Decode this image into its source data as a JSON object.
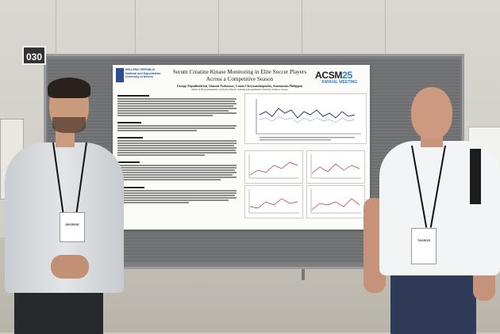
{
  "board": {
    "number": "030"
  },
  "poster": {
    "logo_line1": "HELLENIC REPUBLIC",
    "logo_line2": "National and Kapodistrian",
    "logo_line3": "University of Athens",
    "title": "Serum Creatine Kinase Monitoring in Elite Soccer Players Across a Competitive Season",
    "authors": "George Papadimitriou, Giannis Tsekouras, Costas Chryssanthopoulos, Anastassios Philippou",
    "affiliation": "School of Physical Education and Sports Science, National and Kapodistrian University of Athens, Greece",
    "event_name": "ACSM",
    "event_year": "25",
    "event_subtitle": "ANNUAL MEETING"
  },
  "badges": {
    "left_name": "GEORGE",
    "right_name": "TASSOS"
  }
}
